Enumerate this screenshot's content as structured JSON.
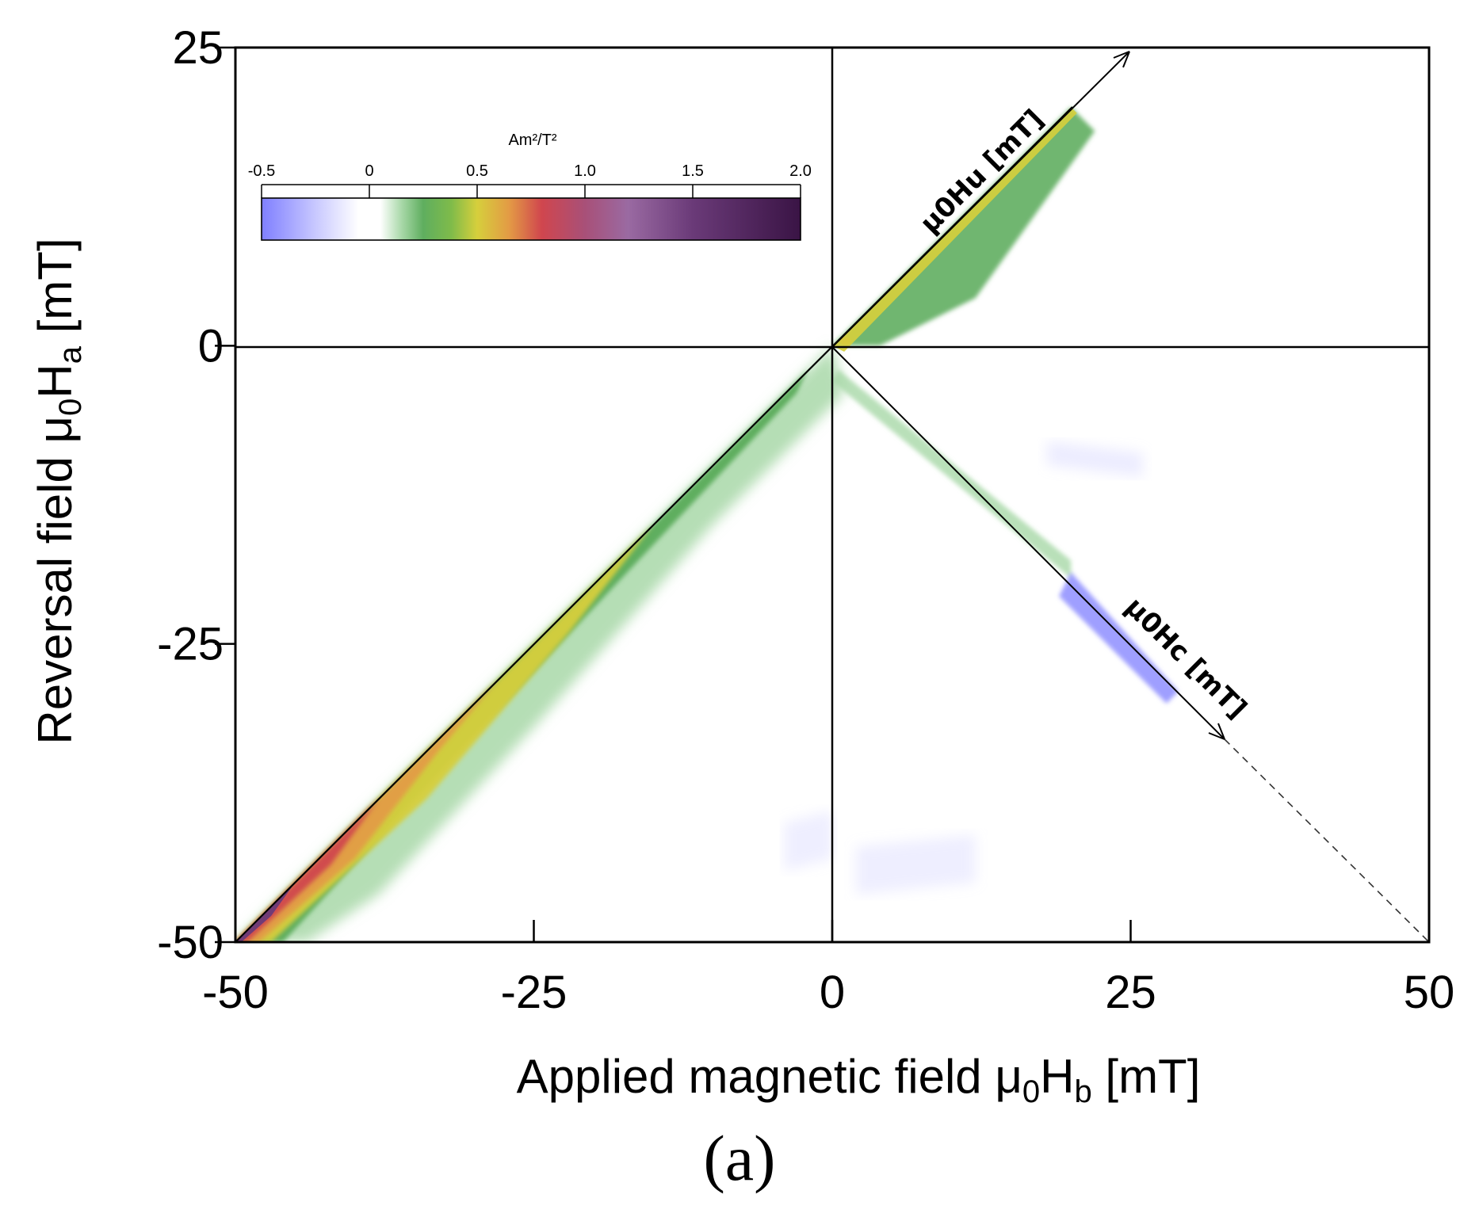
{
  "chart_data": {
    "type": "heatmap",
    "title": "",
    "xlabel": "Applied magnetic field μ0Hb [mT]",
    "ylabel": "Reversal field μ0Ha [mT]",
    "xlim": [
      -50,
      50
    ],
    "ylim": [
      -50,
      25
    ],
    "x_ticks": [
      -50,
      -25,
      0,
      25,
      50
    ],
    "y_ticks": [
      25,
      0,
      -25,
      -50
    ],
    "colorbar": {
      "unit": "Am²/T²",
      "ticks": [
        -0.5,
        0,
        0.5,
        1.0,
        1.5,
        2.0
      ],
      "tick_labels": [
        "-0.5",
        "0",
        "0.5",
        "1.0",
        "1.5",
        "2.0"
      ],
      "range": [
        -0.5,
        2.0
      ],
      "colormap": [
        {
          "v": -0.5,
          "c": "#7f7fff"
        },
        {
          "v": -0.25,
          "c": "#c8c8ff"
        },
        {
          "v": -0.05,
          "c": "#ffffff"
        },
        {
          "v": 0.05,
          "c": "#ffffff"
        },
        {
          "v": 0.15,
          "c": "#a8d8a8"
        },
        {
          "v": 0.25,
          "c": "#5fae5f"
        },
        {
          "v": 0.38,
          "c": "#7fbb4a"
        },
        {
          "v": 0.5,
          "c": "#d6cf3c"
        },
        {
          "v": 0.65,
          "c": "#e39a45"
        },
        {
          "v": 0.8,
          "c": "#d0464e"
        },
        {
          "v": 1.0,
          "c": "#a85078"
        },
        {
          "v": 1.2,
          "c": "#9a6aa2"
        },
        {
          "v": 1.5,
          "c": "#6a3a78"
        },
        {
          "v": 2.0,
          "c": "#3a1445"
        }
      ]
    },
    "annotations": {
      "hu_axis": "μ0Hu [mT]",
      "hc_axis": "μ0Hc [mT]"
    },
    "panel_label": "(a)"
  }
}
